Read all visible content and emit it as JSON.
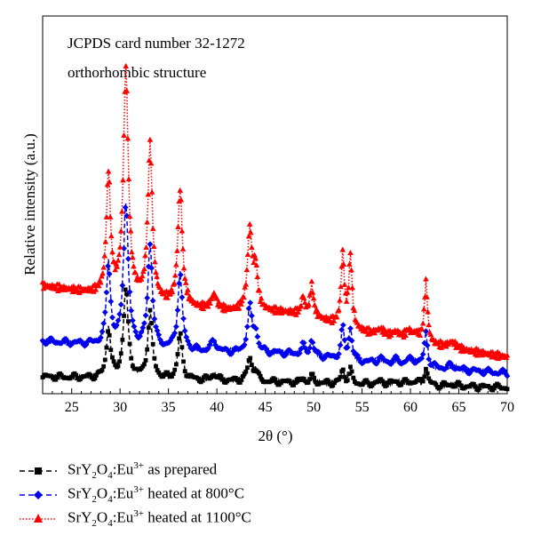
{
  "chart_data": {
    "type": "line",
    "annotations": [
      "JCPDS card number 32-1272",
      "orthorhombic structure"
    ],
    "xlabel": "2θ (°)",
    "ylabel": "Relative intensity (a.u.)",
    "xlim": [
      22,
      70
    ],
    "xticks": [
      25,
      30,
      35,
      40,
      45,
      50,
      55,
      60,
      65,
      70
    ],
    "ylim": [
      0,
      100
    ],
    "grid": false,
    "legend_placement": "below",
    "x_grid": {
      "start": 22,
      "end": 70,
      "step": 0.1
    },
    "peaks": [
      {
        "x": 28.8,
        "w": 0.25,
        "h": [
          0.55,
          0.9,
          1.35
        ]
      },
      {
        "x": 30.6,
        "w": 0.3,
        "h": [
          1.0,
          1.6,
          2.55
        ]
      },
      {
        "x": 33.1,
        "w": 0.28,
        "h": [
          0.75,
          1.15,
          1.75
        ]
      },
      {
        "x": 36.2,
        "w": 0.28,
        "h": [
          0.5,
          0.85,
          1.3
        ]
      },
      {
        "x": 39.7,
        "w": 0.35,
        "h": [
          0.07,
          0.12,
          0.17
        ]
      },
      {
        "x": 43.4,
        "w": 0.28,
        "h": [
          0.25,
          0.5,
          0.9
        ]
      },
      {
        "x": 44.0,
        "w": 0.25,
        "h": [
          0.1,
          0.22,
          0.45
        ]
      },
      {
        "x": 48.9,
        "w": 0.2,
        "h": [
          0.05,
          0.1,
          0.2
        ]
      },
      {
        "x": 49.8,
        "w": 0.22,
        "h": [
          0.07,
          0.17,
          0.35
        ]
      },
      {
        "x": 53.0,
        "w": 0.2,
        "h": [
          0.15,
          0.35,
          0.8
        ]
      },
      {
        "x": 53.8,
        "w": 0.2,
        "h": [
          0.15,
          0.35,
          0.8
        ]
      },
      {
        "x": 56.9,
        "w": 0.5,
        "h": [
          0.03,
          0.05,
          0.07
        ]
      },
      {
        "x": 58.5,
        "w": 0.5,
        "h": [
          0.03,
          0.05,
          0.07
        ]
      },
      {
        "x": 59.8,
        "w": 0.4,
        "h": [
          0.03,
          0.06,
          0.1
        ]
      },
      {
        "x": 60.6,
        "w": 0.4,
        "h": [
          0.03,
          0.05,
          0.08
        ]
      },
      {
        "x": 61.6,
        "w": 0.2,
        "h": [
          0.2,
          0.38,
          0.68
        ]
      },
      {
        "x": 64.3,
        "w": 0.5,
        "h": [
          0.02,
          0.04,
          0.07
        ]
      }
    ],
    "series": [
      {
        "name": "SrY2O4:Eu3+ as prepared",
        "color": "#000000",
        "marker": "square",
        "line": "dash",
        "baseline": [
          0.18,
          0.06
        ],
        "marker_step": 0.15
      },
      {
        "name": "SrY2O4:Eu3+ heated at 800°C",
        "color": "#0000ee",
        "marker": "diamond",
        "line": "dash",
        "baseline": [
          0.58,
          0.22
        ],
        "marker_step": 0.15
      },
      {
        "name": "SrY2O4:Eu3+ heated at 1100°C",
        "color": "#ff0000",
        "marker": "triangle",
        "line": "dot",
        "baseline": [
          1.2,
          0.4
        ],
        "marker_step": 0.1
      }
    ]
  },
  "legend": [
    {
      "base": "SrY",
      "sub1": "2",
      "mid": "O",
      "sub2": "4",
      "tail": ":Eu",
      "sup": "3+",
      "suffix": " as prepared",
      "color": "#000000",
      "marker": "square",
      "line": "dash"
    },
    {
      "base": "SrY",
      "sub1": "2",
      "mid": "O",
      "sub2": "4",
      "tail": ":Eu",
      "sup": "3+",
      "suffix": " heated at 800°C",
      "color": "#0000ee",
      "marker": "diamond",
      "line": "dash"
    },
    {
      "base": "SrY",
      "sub1": "2",
      "mid": "O",
      "sub2": "4",
      "tail": ":Eu",
      "sup": "3+",
      "suffix": " heated at 1100°C",
      "color": "#ff0000",
      "marker": "triangle",
      "line": "dot"
    }
  ]
}
